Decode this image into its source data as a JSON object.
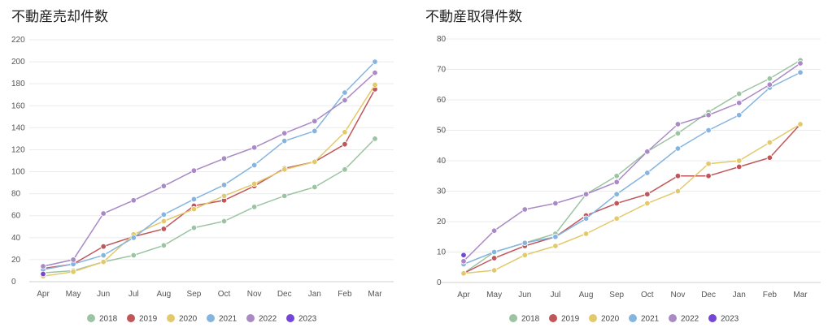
{
  "chart_data": [
    {
      "type": "line",
      "title": "不動産売却件数",
      "categories": [
        "Apr",
        "May",
        "Jun",
        "Jul",
        "Aug",
        "Sep",
        "Oct",
        "Nov",
        "Dec",
        "Jan",
        "Feb",
        "Mar"
      ],
      "yticks": [
        0,
        20,
        40,
        60,
        80,
        100,
        120,
        140,
        160,
        180,
        200,
        220
      ],
      "ylim": [
        0,
        220
      ],
      "grid": true,
      "legend_position": "bottom",
      "series": [
        {
          "name": "2018",
          "color": "#9cc4a3",
          "values": [
            8,
            10,
            18,
            24,
            33,
            49,
            55,
            68,
            78,
            86,
            102,
            130
          ]
        },
        {
          "name": "2019",
          "color": "#c0565a",
          "values": [
            12,
            16,
            32,
            41,
            48,
            69,
            74,
            87,
            103,
            109,
            125,
            175
          ]
        },
        {
          "name": "2020",
          "color": "#e2c96b",
          "values": [
            5,
            9,
            18,
            43,
            55,
            66,
            78,
            89,
            102,
            109,
            136,
            179
          ]
        },
        {
          "name": "2021",
          "color": "#85b5df",
          "values": [
            11,
            16,
            24,
            40,
            61,
            75,
            88,
            106,
            128,
            137,
            172,
            200
          ]
        },
        {
          "name": "2022",
          "color": "#a98ac5",
          "values": [
            14,
            20,
            62,
            74,
            87,
            101,
            112,
            122,
            135,
            146,
            165,
            190
          ]
        },
        {
          "name": "2023",
          "color": "#7446d6",
          "values": [
            7,
            null,
            null,
            null,
            null,
            null,
            null,
            null,
            null,
            null,
            null,
            null
          ]
        }
      ]
    },
    {
      "type": "line",
      "title": "不動産取得件数",
      "categories": [
        "Apr",
        "May",
        "Jun",
        "Jul",
        "Aug",
        "Sep",
        "Oct",
        "Nov",
        "Dec",
        "Jan",
        "Feb",
        "Mar"
      ],
      "yticks": [
        0,
        10,
        20,
        30,
        40,
        50,
        60,
        70,
        80
      ],
      "ylim": [
        0,
        80
      ],
      "grid": true,
      "legend_position": "bottom",
      "series": [
        {
          "name": "2018",
          "color": "#9cc4a3",
          "values": [
            3,
            10,
            13,
            16,
            29,
            35,
            43,
            49,
            56,
            62,
            67,
            73
          ]
        },
        {
          "name": "2019",
          "color": "#c0565a",
          "values": [
            3,
            8,
            12,
            15,
            22,
            26,
            29,
            35,
            35,
            38,
            41,
            52
          ]
        },
        {
          "name": "2020",
          "color": "#e2c96b",
          "values": [
            3,
            4,
            9,
            12,
            16,
            21,
            26,
            30,
            39,
            40,
            46,
            52
          ]
        },
        {
          "name": "2021",
          "color": "#85b5df",
          "values": [
            6,
            10,
            13,
            15,
            21,
            29,
            36,
            44,
            50,
            55,
            64,
            69
          ]
        },
        {
          "name": "2022",
          "color": "#a98ac5",
          "values": [
            7,
            17,
            24,
            26,
            29,
            33,
            43,
            52,
            55,
            59,
            65,
            72
          ]
        },
        {
          "name": "2023",
          "color": "#7446d6",
          "values": [
            9,
            null,
            null,
            null,
            null,
            null,
            null,
            null,
            null,
            null,
            null,
            null
          ]
        }
      ]
    }
  ]
}
